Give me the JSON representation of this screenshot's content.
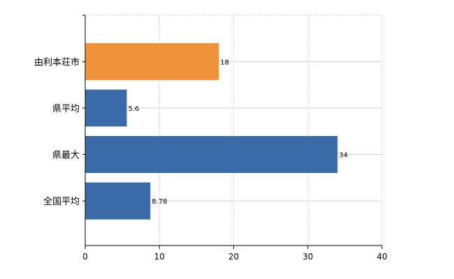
{
  "chart_data": {
    "type": "bar",
    "orientation": "horizontal",
    "categories": [
      "由利本荘市",
      "県平均",
      "県最大",
      "全国平均"
    ],
    "values": [
      18,
      5.6,
      34,
      8.78
    ],
    "value_labels": [
      "18",
      "5.6",
      "34",
      "8.78"
    ],
    "colors": [
      "#f0923a",
      "#3a6aa8",
      "#3a6aa8",
      "#3a6aa8"
    ],
    "xlim": [
      0,
      40
    ],
    "xticks": [
      0,
      10,
      20,
      30,
      40
    ],
    "title": "",
    "xlabel": "",
    "ylabel": "",
    "grid": true,
    "legend": "none"
  }
}
